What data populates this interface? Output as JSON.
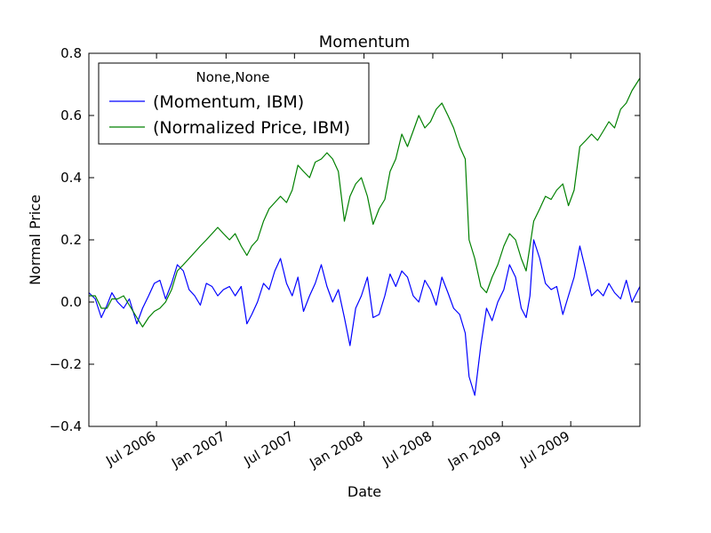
{
  "chart_data": {
    "type": "line",
    "title": "Momentum",
    "xlabel": "Date",
    "ylabel": "Normal Price",
    "xlim": [
      "2006-01-03",
      "2009-12-31"
    ],
    "ylim": [
      -0.4,
      0.8
    ],
    "yticks": [
      -0.4,
      -0.2,
      0.0,
      0.2,
      0.4,
      0.6,
      0.8
    ],
    "ytick_labels": [
      "−0.4",
      "−0.2",
      "0.0",
      "0.2",
      "0.4",
      "0.6",
      "0.8"
    ],
    "xticks": [
      "2006-07-01",
      "2007-01-01",
      "2007-07-01",
      "2008-01-01",
      "2008-07-01",
      "2009-01-01",
      "2009-07-01"
    ],
    "xtick_labels": [
      "Jul 2006",
      "Jan 2007",
      "Jul 2007",
      "Jan 2008",
      "Jul 2008",
      "Jan 2009",
      "Jul 2009"
    ],
    "grid": false,
    "legend": {
      "title": "None,None",
      "position": "upper-left",
      "entries": [
        "(Momentum, IBM)",
        "(Normalized Price, IBM)"
      ]
    },
    "series": [
      {
        "name": "(Momentum, IBM)",
        "color": "#0000ff",
        "points": [
          [
            "2006-01-03",
            0.03
          ],
          [
            "2006-01-20",
            0.01
          ],
          [
            "2006-02-05",
            -0.05
          ],
          [
            "2006-02-20",
            -0.01
          ],
          [
            "2006-03-05",
            0.03
          ],
          [
            "2006-03-20",
            0.0
          ],
          [
            "2006-04-05",
            -0.02
          ],
          [
            "2006-04-20",
            0.01
          ],
          [
            "2006-05-10",
            -0.07
          ],
          [
            "2006-05-25",
            -0.02
          ],
          [
            "2006-06-10",
            0.02
          ],
          [
            "2006-06-25",
            0.06
          ],
          [
            "2006-07-10",
            0.07
          ],
          [
            "2006-07-25",
            0.01
          ],
          [
            "2006-08-10",
            0.06
          ],
          [
            "2006-08-25",
            0.12
          ],
          [
            "2006-09-10",
            0.1
          ],
          [
            "2006-09-25",
            0.04
          ],
          [
            "2006-10-10",
            0.02
          ],
          [
            "2006-10-25",
            -0.01
          ],
          [
            "2006-11-10",
            0.06
          ],
          [
            "2006-11-25",
            0.05
          ],
          [
            "2006-12-10",
            0.02
          ],
          [
            "2006-12-25",
            0.04
          ],
          [
            "2007-01-10",
            0.05
          ],
          [
            "2007-01-25",
            0.02
          ],
          [
            "2007-02-10",
            0.05
          ],
          [
            "2007-02-25",
            -0.07
          ],
          [
            "2007-03-10",
            -0.04
          ],
          [
            "2007-03-25",
            0.0
          ],
          [
            "2007-04-10",
            0.06
          ],
          [
            "2007-04-25",
            0.04
          ],
          [
            "2007-05-10",
            0.1
          ],
          [
            "2007-05-25",
            0.14
          ],
          [
            "2007-06-10",
            0.06
          ],
          [
            "2007-06-25",
            0.02
          ],
          [
            "2007-07-10",
            0.08
          ],
          [
            "2007-07-25",
            -0.03
          ],
          [
            "2007-08-10",
            0.02
          ],
          [
            "2007-08-25",
            0.06
          ],
          [
            "2007-09-10",
            0.12
          ],
          [
            "2007-09-25",
            0.05
          ],
          [
            "2007-10-10",
            0.0
          ],
          [
            "2007-10-25",
            0.04
          ],
          [
            "2007-11-10",
            -0.05
          ],
          [
            "2007-11-25",
            -0.14
          ],
          [
            "2007-12-10",
            -0.02
          ],
          [
            "2007-12-25",
            0.02
          ],
          [
            "2008-01-10",
            0.08
          ],
          [
            "2008-01-25",
            -0.05
          ],
          [
            "2008-02-10",
            -0.04
          ],
          [
            "2008-02-25",
            0.02
          ],
          [
            "2008-03-10",
            0.09
          ],
          [
            "2008-03-25",
            0.05
          ],
          [
            "2008-04-10",
            0.1
          ],
          [
            "2008-04-25",
            0.08
          ],
          [
            "2008-05-10",
            0.02
          ],
          [
            "2008-05-25",
            0.0
          ],
          [
            "2008-06-10",
            0.07
          ],
          [
            "2008-06-25",
            0.04
          ],
          [
            "2008-07-10",
            -0.01
          ],
          [
            "2008-07-25",
            0.08
          ],
          [
            "2008-08-10",
            0.03
          ],
          [
            "2008-08-25",
            -0.02
          ],
          [
            "2008-09-10",
            -0.04
          ],
          [
            "2008-09-25",
            -0.1
          ],
          [
            "2008-10-05",
            -0.24
          ],
          [
            "2008-10-20",
            -0.3
          ],
          [
            "2008-11-05",
            -0.14
          ],
          [
            "2008-11-20",
            -0.02
          ],
          [
            "2008-12-05",
            -0.06
          ],
          [
            "2008-12-20",
            0.0
          ],
          [
            "2009-01-05",
            0.04
          ],
          [
            "2009-01-20",
            0.12
          ],
          [
            "2009-02-05",
            0.08
          ],
          [
            "2009-02-20",
            -0.02
          ],
          [
            "2009-03-05",
            -0.05
          ],
          [
            "2009-03-15",
            0.02
          ],
          [
            "2009-03-25",
            0.2
          ],
          [
            "2009-04-10",
            0.14
          ],
          [
            "2009-04-25",
            0.06
          ],
          [
            "2009-05-10",
            0.04
          ],
          [
            "2009-05-25",
            0.05
          ],
          [
            "2009-06-10",
            -0.04
          ],
          [
            "2009-06-25",
            0.02
          ],
          [
            "2009-07-10",
            0.08
          ],
          [
            "2009-07-25",
            0.18
          ],
          [
            "2009-08-10",
            0.1
          ],
          [
            "2009-08-25",
            0.02
          ],
          [
            "2009-09-10",
            0.04
          ],
          [
            "2009-09-25",
            0.02
          ],
          [
            "2009-10-10",
            0.06
          ],
          [
            "2009-10-25",
            0.03
          ],
          [
            "2009-11-10",
            0.01
          ],
          [
            "2009-11-25",
            0.07
          ],
          [
            "2009-12-10",
            0.0
          ],
          [
            "2009-12-31",
            0.05
          ]
        ]
      },
      {
        "name": "(Normalized Price, IBM)",
        "color": "#008000",
        "points": [
          [
            "2006-01-03",
            0.02
          ],
          [
            "2006-01-20",
            0.02
          ],
          [
            "2006-02-05",
            -0.02
          ],
          [
            "2006-02-20",
            -0.02
          ],
          [
            "2006-03-05",
            0.01
          ],
          [
            "2006-03-20",
            0.01
          ],
          [
            "2006-04-05",
            0.02
          ],
          [
            "2006-04-20",
            -0.01
          ],
          [
            "2006-05-10",
            -0.05
          ],
          [
            "2006-05-25",
            -0.08
          ],
          [
            "2006-06-10",
            -0.05
          ],
          [
            "2006-06-25",
            -0.03
          ],
          [
            "2006-07-10",
            -0.02
          ],
          [
            "2006-07-25",
            0.0
          ],
          [
            "2006-08-10",
            0.04
          ],
          [
            "2006-08-25",
            0.1
          ],
          [
            "2006-09-10",
            0.12
          ],
          [
            "2006-09-25",
            0.14
          ],
          [
            "2006-10-10",
            0.16
          ],
          [
            "2006-10-25",
            0.18
          ],
          [
            "2006-11-10",
            0.2
          ],
          [
            "2006-11-25",
            0.22
          ],
          [
            "2006-12-10",
            0.24
          ],
          [
            "2006-12-25",
            0.22
          ],
          [
            "2007-01-10",
            0.2
          ],
          [
            "2007-01-25",
            0.22
          ],
          [
            "2007-02-10",
            0.18
          ],
          [
            "2007-02-25",
            0.15
          ],
          [
            "2007-03-10",
            0.18
          ],
          [
            "2007-03-25",
            0.2
          ],
          [
            "2007-04-10",
            0.26
          ],
          [
            "2007-04-25",
            0.3
          ],
          [
            "2007-05-10",
            0.32
          ],
          [
            "2007-05-25",
            0.34
          ],
          [
            "2007-06-10",
            0.32
          ],
          [
            "2007-06-25",
            0.36
          ],
          [
            "2007-07-10",
            0.44
          ],
          [
            "2007-07-25",
            0.42
          ],
          [
            "2007-08-10",
            0.4
          ],
          [
            "2007-08-25",
            0.45
          ],
          [
            "2007-09-10",
            0.46
          ],
          [
            "2007-09-25",
            0.48
          ],
          [
            "2007-10-10",
            0.46
          ],
          [
            "2007-10-25",
            0.42
          ],
          [
            "2007-11-10",
            0.26
          ],
          [
            "2007-11-25",
            0.34
          ],
          [
            "2007-12-10",
            0.38
          ],
          [
            "2007-12-25",
            0.4
          ],
          [
            "2008-01-10",
            0.34
          ],
          [
            "2008-01-25",
            0.25
          ],
          [
            "2008-02-10",
            0.3
          ],
          [
            "2008-02-25",
            0.33
          ],
          [
            "2008-03-10",
            0.42
          ],
          [
            "2008-03-25",
            0.46
          ],
          [
            "2008-04-10",
            0.54
          ],
          [
            "2008-04-25",
            0.5
          ],
          [
            "2008-05-10",
            0.55
          ],
          [
            "2008-05-25",
            0.6
          ],
          [
            "2008-06-10",
            0.56
          ],
          [
            "2008-06-25",
            0.58
          ],
          [
            "2008-07-10",
            0.62
          ],
          [
            "2008-07-25",
            0.64
          ],
          [
            "2008-08-10",
            0.6
          ],
          [
            "2008-08-25",
            0.56
          ],
          [
            "2008-09-10",
            0.5
          ],
          [
            "2008-09-25",
            0.46
          ],
          [
            "2008-10-05",
            0.2
          ],
          [
            "2008-10-20",
            0.14
          ],
          [
            "2008-11-05",
            0.05
          ],
          [
            "2008-11-20",
            0.03
          ],
          [
            "2008-12-05",
            0.08
          ],
          [
            "2008-12-20",
            0.12
          ],
          [
            "2009-01-05",
            0.18
          ],
          [
            "2009-01-20",
            0.22
          ],
          [
            "2009-02-05",
            0.2
          ],
          [
            "2009-02-20",
            0.14
          ],
          [
            "2009-03-05",
            0.1
          ],
          [
            "2009-03-15",
            0.18
          ],
          [
            "2009-03-25",
            0.26
          ],
          [
            "2009-04-10",
            0.3
          ],
          [
            "2009-04-25",
            0.34
          ],
          [
            "2009-05-10",
            0.33
          ],
          [
            "2009-05-25",
            0.36
          ],
          [
            "2009-06-10",
            0.38
          ],
          [
            "2009-06-25",
            0.31
          ],
          [
            "2009-07-10",
            0.36
          ],
          [
            "2009-07-25",
            0.5
          ],
          [
            "2009-08-10",
            0.52
          ],
          [
            "2009-08-25",
            0.54
          ],
          [
            "2009-09-10",
            0.52
          ],
          [
            "2009-09-25",
            0.55
          ],
          [
            "2009-10-10",
            0.58
          ],
          [
            "2009-10-25",
            0.56
          ],
          [
            "2009-11-10",
            0.62
          ],
          [
            "2009-11-25",
            0.64
          ],
          [
            "2009-12-10",
            0.68
          ],
          [
            "2009-12-31",
            0.72
          ]
        ]
      }
    ]
  }
}
